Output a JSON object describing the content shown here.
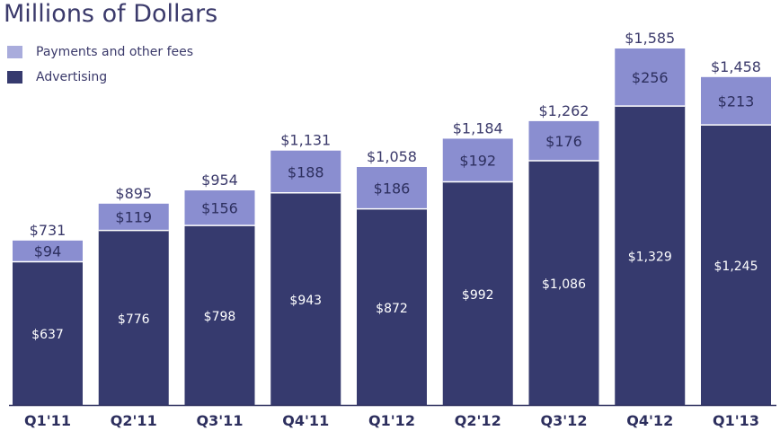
{
  "chart_data": {
    "type": "bar",
    "stacked": true,
    "title": "Millions of Dollars",
    "categories": [
      "Q1'11",
      "Q2'11",
      "Q3'11",
      "Q4'11",
      "Q1'12",
      "Q2'12",
      "Q3'12",
      "Q4'12",
      "Q1'13"
    ],
    "series": [
      {
        "name": "Advertising",
        "color": "#363a6e",
        "values": [
          637,
          776,
          798,
          943,
          872,
          992,
          1086,
          1329,
          1245
        ],
        "labels": [
          "$637",
          "$776",
          "$798",
          "$943",
          "$872",
          "$992",
          "$1,086",
          "$1,329",
          "$1,245"
        ]
      },
      {
        "name": "Payments and other fees",
        "color": "#8a8ed0",
        "values": [
          94,
          119,
          156,
          188,
          186,
          192,
          176,
          256,
          213
        ],
        "labels": [
          "$94",
          "$119",
          "$156",
          "$188",
          "$186",
          "$192",
          "$176",
          "$256",
          "$213"
        ]
      }
    ],
    "totals": [
      "$731",
      "$895",
      "$954",
      "$1,131",
      "$1,058",
      "$1,184",
      "$1,262",
      "$1,585",
      "$1,458"
    ],
    "legend": {
      "position": "top-left",
      "items": [
        {
          "label": "Payments and other fees",
          "color": "#a9acdc"
        },
        {
          "label": "Advertising",
          "color": "#363a6e"
        }
      ]
    },
    "ylim": [
      0,
      1585
    ],
    "grid": false
  }
}
